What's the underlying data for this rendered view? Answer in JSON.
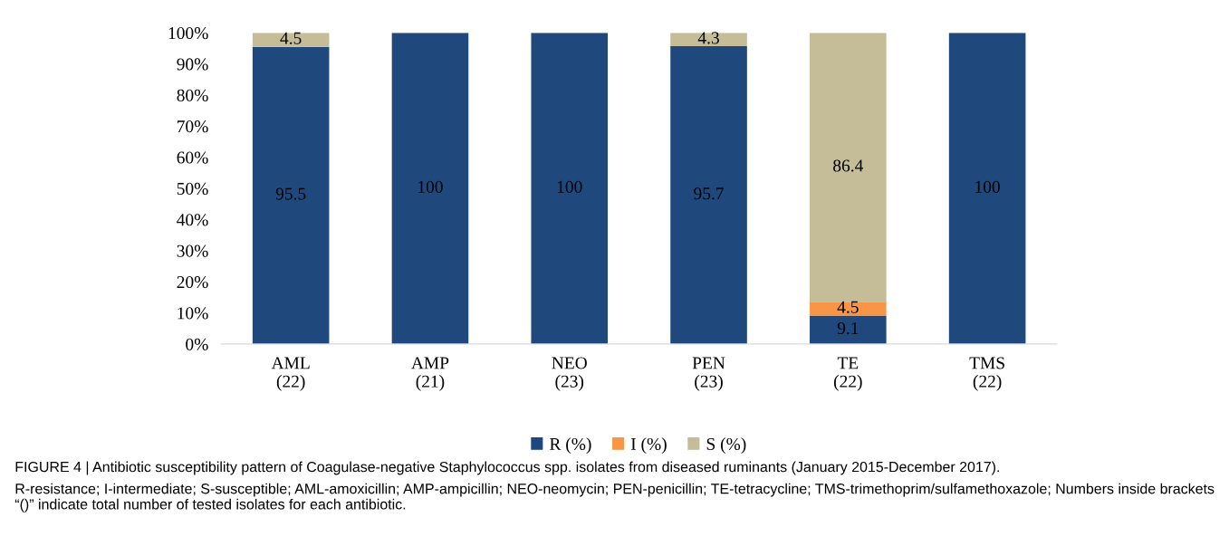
{
  "chart_data": {
    "type": "bar",
    "stacked": true,
    "categories": [
      "AML\n(22)",
      "AMP\n(21)",
      "NEO\n(23)",
      "PEN\n(23)",
      "TE\n(22)",
      "TMS\n(22)"
    ],
    "series": [
      {
        "name": "R (%)",
        "color": "#1f497d",
        "values": [
          95.5,
          100,
          100,
          95.7,
          9.1,
          100
        ],
        "value_labels": [
          "95.5",
          "100",
          "100",
          "95.7",
          "9.1",
          "100"
        ]
      },
      {
        "name": "I (%)",
        "color": "#f79646",
        "values": [
          0,
          0,
          0,
          0,
          4.5,
          0
        ],
        "value_labels": [
          null,
          null,
          null,
          null,
          "4.5",
          null
        ]
      },
      {
        "name": "S (%)",
        "color": "#c4bd97",
        "values": [
          4.5,
          0,
          0,
          4.3,
          86.4,
          0
        ],
        "value_labels": [
          "4.5",
          null,
          null,
          "4.3",
          "86.4",
          null
        ]
      }
    ],
    "ylim": [
      0,
      100
    ],
    "yticks": [
      {
        "value": 0,
        "label": "0%"
      },
      {
        "value": 10,
        "label": "10%"
      },
      {
        "value": 20,
        "label": "20%"
      },
      {
        "value": 30,
        "label": "30%"
      },
      {
        "value": 40,
        "label": "40%"
      },
      {
        "value": 50,
        "label": "50%"
      },
      {
        "value": 60,
        "label": "60%"
      },
      {
        "value": 70,
        "label": "70%"
      },
      {
        "value": 80,
        "label": "80%"
      },
      {
        "value": 90,
        "label": "90%"
      },
      {
        "value": 100,
        "label": "100%"
      }
    ],
    "grid": false,
    "legend": "bottom",
    "annotations": [
      "FIGURE 4 | Antibiotic susceptibility pattern of Coagulase-negative Staphylococcus spp. isolates from diseased ruminants (January 2015-December 2017).",
      "R-resistance; I-intermediate; S-susceptible; AML-amoxicillin; AMP-ampicillin; NEO-neomycin; PEN-penicillin; TE-tetracycline; TMS-trimethoprim/sulfamethoxazole; Numbers inside brackets “()” indicate total number of tested isolates for each antibiotic."
    ]
  }
}
